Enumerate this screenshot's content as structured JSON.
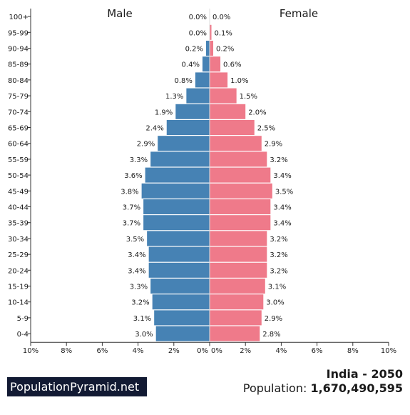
{
  "chart_data": {
    "type": "bar",
    "orientation": "horizontal-diverging",
    "categories": [
      "100+",
      "95-99",
      "90-94",
      "85-89",
      "80-84",
      "75-79",
      "70-74",
      "65-69",
      "60-64",
      "55-59",
      "50-54",
      "45-49",
      "40-44",
      "35-39",
      "30-34",
      "25-29",
      "20-24",
      "15-19",
      "10-14",
      "5-9",
      "0-4"
    ],
    "series": [
      {
        "name": "Male",
        "color": "#4682b4",
        "values": [
          0.0,
          0.0,
          0.2,
          0.4,
          0.8,
          1.3,
          1.9,
          2.4,
          2.9,
          3.3,
          3.6,
          3.8,
          3.7,
          3.7,
          3.5,
          3.4,
          3.4,
          3.3,
          3.2,
          3.1,
          3.0
        ],
        "labels": [
          "0.0%",
          "0.0%",
          "0.2%",
          "0.4%",
          "0.8%",
          "1.3%",
          "1.9%",
          "2.4%",
          "2.9%",
          "3.3%",
          "3.6%",
          "3.8%",
          "3.7%",
          "3.7%",
          "3.5%",
          "3.4%",
          "3.4%",
          "3.3%",
          "3.2%",
          "3.1%",
          "3.0%"
        ]
      },
      {
        "name": "Female",
        "color": "#ef7a8a",
        "values": [
          0.0,
          0.1,
          0.2,
          0.6,
          1.0,
          1.5,
          2.0,
          2.5,
          2.9,
          3.2,
          3.4,
          3.5,
          3.4,
          3.4,
          3.2,
          3.2,
          3.2,
          3.1,
          3.0,
          2.9,
          2.8
        ],
        "labels": [
          "0.0%",
          "0.1%",
          "0.2%",
          "0.6%",
          "1.0%",
          "1.5%",
          "2.0%",
          "2.5%",
          "2.9%",
          "3.2%",
          "3.4%",
          "3.5%",
          "3.4%",
          "3.4%",
          "3.2%",
          "3.2%",
          "3.2%",
          "3.1%",
          "3.0%",
          "2.9%",
          "2.8%"
        ]
      }
    ],
    "xlim": [
      -10,
      10
    ],
    "x_ticks": [
      "10%",
      "8%",
      "6%",
      "4%",
      "2%",
      "0%",
      "0%",
      "2%",
      "4%",
      "6%",
      "8%",
      "10%"
    ],
    "title": "",
    "xlabel": "",
    "ylabel": "",
    "grid": false
  },
  "branding": {
    "logo_text": "PopulationPyramid.net"
  },
  "footer": {
    "country_year": "India - 2050",
    "population_label": "Population:",
    "population_value": "1,670,490,595"
  }
}
